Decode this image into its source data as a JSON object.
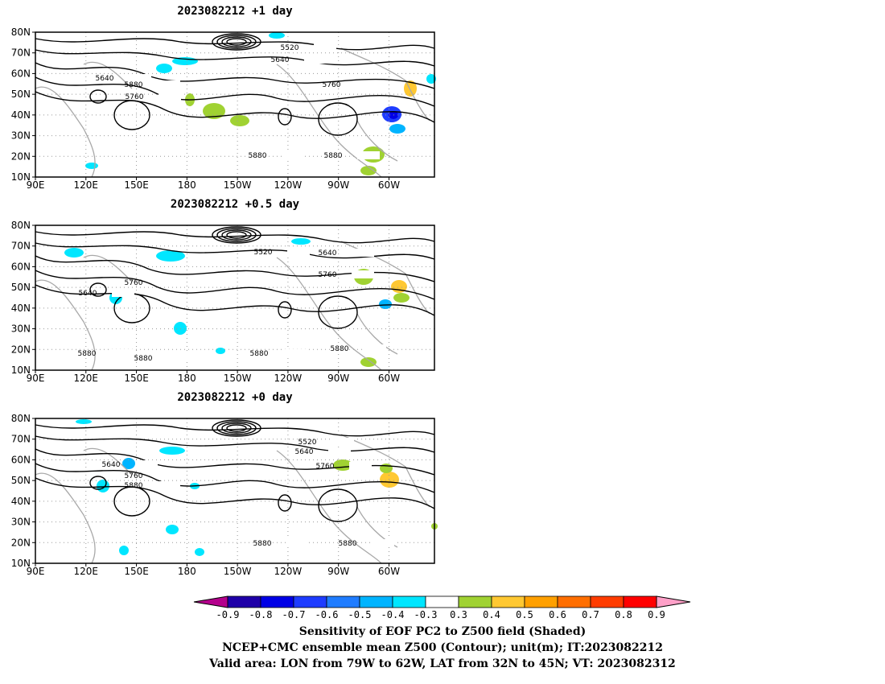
{
  "panels": [
    {
      "title": "2023082212  +1 day",
      "contour_labels": [
        "5520",
        "5640",
        "5640",
        "5760",
        "5880",
        "5760",
        "5880",
        "5880"
      ]
    },
    {
      "title": "2023082212  +0.5 day",
      "contour_labels": [
        "5640",
        "5520",
        "5760",
        "5640",
        "5760",
        "5880",
        "5880",
        "5880",
        "5880"
      ]
    },
    {
      "title": "2023082212  +0 day",
      "contour_labels": [
        "5520",
        "5640",
        "5640",
        "5760",
        "5760",
        "5880",
        "5880",
        "5880"
      ]
    }
  ],
  "lat_labels": [
    "80N",
    "70N",
    "60N",
    "50N",
    "40N",
    "30N",
    "20N",
    "10N"
  ],
  "lon_labels": [
    "90E",
    "120E",
    "150E",
    "180",
    "150W",
    "120W",
    "90W",
    "60W"
  ],
  "colorbar": {
    "ticks": [
      "-0.9",
      "-0.8",
      "-0.7",
      "-0.6",
      "-0.5",
      "-0.4",
      "-0.3",
      "0.3",
      "0.4",
      "0.5",
      "0.6",
      "0.7",
      "0.8",
      "0.9"
    ],
    "colors": [
      "#1f00a8",
      "#0000e6",
      "#1e3cff",
      "#1f7cff",
      "#00b4ff",
      "#00e6ff",
      "#ffffff",
      "#a0d232",
      "#ffc832",
      "#ffa000",
      "#ff6e00",
      "#ff3c00",
      "#ff0000"
    ],
    "left_tip": "#b4008c",
    "right_tip": "#ffa0c8"
  },
  "caption": {
    "line1": "Sensitivity of EOF PC2 to Z500 field (Shaded)",
    "line2": "NCEP+CMC ensemble mean Z500 (Contour); unit(m); IT:2023082212",
    "line3": "Valid area: LON from 79W to 62W, LAT from 32N to 45N; VT: 2023082312"
  }
}
